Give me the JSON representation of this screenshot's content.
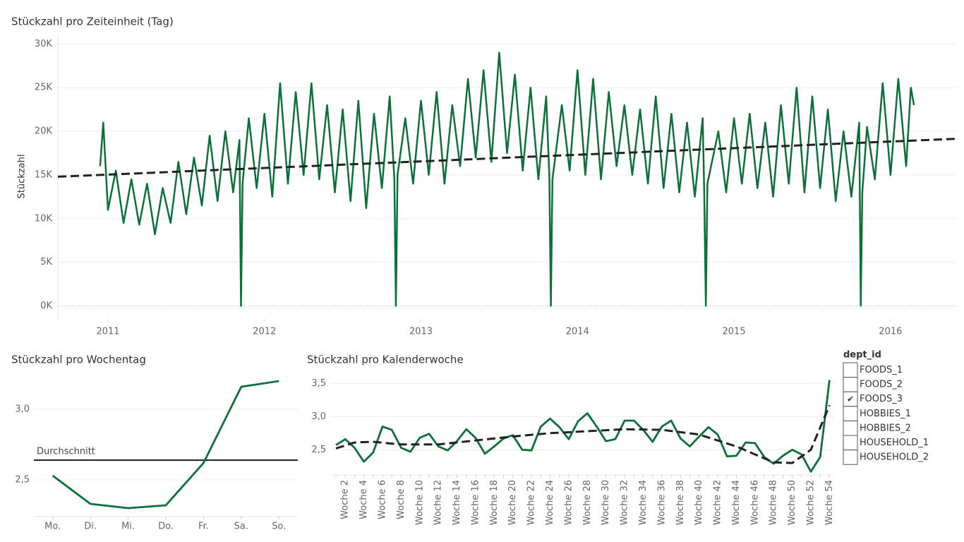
{
  "chart_data": [
    {
      "type": "line",
      "title": "Stückzahl pro Zeiteinheit (Tag)",
      "y_label": "Stückzahl",
      "color": "#0b7139",
      "x": [
        2010.95,
        2010.97,
        2011.0,
        2011.05,
        2011.1,
        2011.15,
        2011.2,
        2011.25,
        2011.3,
        2011.35,
        2011.4,
        2011.45,
        2011.5,
        2011.55,
        2011.6,
        2011.65,
        2011.7,
        2011.75,
        2011.8,
        2011.84,
        2011.85,
        2011.86,
        2011.9,
        2011.95,
        2012.0,
        2012.05,
        2012.1,
        2012.15,
        2012.2,
        2012.25,
        2012.3,
        2012.35,
        2012.4,
        2012.45,
        2012.5,
        2012.55,
        2012.6,
        2012.65,
        2012.7,
        2012.75,
        2012.8,
        2012.83,
        2012.84,
        2012.85,
        2012.9,
        2012.95,
        2013.0,
        2013.05,
        2013.1,
        2013.15,
        2013.2,
        2013.25,
        2013.3,
        2013.35,
        2013.4,
        2013.45,
        2013.5,
        2013.55,
        2013.6,
        2013.65,
        2013.7,
        2013.75,
        2013.8,
        2013.82,
        2013.83,
        2013.84,
        2013.9,
        2013.95,
        2014.0,
        2014.05,
        2014.1,
        2014.15,
        2014.2,
        2014.25,
        2014.3,
        2014.35,
        2014.4,
        2014.45,
        2014.5,
        2014.55,
        2014.6,
        2014.65,
        2014.7,
        2014.75,
        2014.8,
        2014.81,
        2014.82,
        2014.83,
        2014.9,
        2014.95,
        2015.0,
        2015.05,
        2015.1,
        2015.15,
        2015.2,
        2015.25,
        2015.3,
        2015.35,
        2015.4,
        2015.45,
        2015.5,
        2015.55,
        2015.6,
        2015.65,
        2015.7,
        2015.75,
        2015.8,
        2015.81,
        2015.82,
        2015.85,
        2015.9,
        2015.95,
        2016.0,
        2016.05,
        2016.1,
        2016.13,
        2016.15
      ],
      "values": [
        16000,
        21000,
        11000,
        15500,
        9500,
        14500,
        9300,
        14000,
        8200,
        13500,
        9500,
        16500,
        10500,
        17000,
        11500,
        19500,
        12000,
        20000,
        13000,
        19000,
        0,
        14000,
        21500,
        13500,
        22000,
        12500,
        25500,
        14000,
        24500,
        15000,
        25500,
        14500,
        23000,
        13000,
        22500,
        12000,
        23500,
        11200,
        22000,
        13500,
        24000,
        14500,
        0,
        15000,
        21500,
        14000,
        23500,
        15000,
        24500,
        14000,
        23000,
        16000,
        26000,
        17000,
        27000,
        16500,
        29000,
        17500,
        26500,
        15500,
        25000,
        14500,
        24000,
        15000,
        0,
        14500,
        23000,
        15500,
        27000,
        15000,
        26000,
        14500,
        24500,
        16000,
        23000,
        15000,
        22500,
        14000,
        24000,
        13500,
        22000,
        13000,
        21000,
        12500,
        21500,
        13000,
        0,
        14000,
        20000,
        13000,
        21500,
        14000,
        22000,
        13500,
        21000,
        12500,
        23000,
        14000,
        25000,
        13000,
        24000,
        13500,
        22500,
        12000,
        20000,
        12500,
        21000,
        0,
        13000,
        20500,
        14500,
        25500,
        15000,
        26000,
        16000,
        25000,
        23000
      ],
      "trend": {
        "x": [
          2010.68,
          2016.42
        ],
        "values": [
          14800,
          19150
        ]
      },
      "xlim": [
        2010.68,
        2016.42
      ],
      "xticks": [
        2011,
        2012,
        2013,
        2014,
        2015,
        2016
      ],
      "ylim": [
        -1500,
        31000
      ],
      "yticks": [
        {
          "value": 0,
          "label": "0K"
        },
        {
          "value": 5000,
          "label": "5K"
        },
        {
          "value": 10000,
          "label": "10K"
        },
        {
          "value": 15000,
          "label": "15K"
        },
        {
          "value": 20000,
          "label": "20K"
        },
        {
          "value": 25000,
          "label": "25K"
        },
        {
          "value": 30000,
          "label": "30K"
        }
      ],
      "grid": true
    },
    {
      "type": "line",
      "title": "Stückzahl pro Wochentag",
      "color": "#0b7139",
      "categories": [
        "Mo.",
        "Di.",
        "Mi.",
        "Do.",
        "Fr.",
        "Sa.",
        "So."
      ],
      "values": [
        2.53,
        2.33,
        2.3,
        2.32,
        2.62,
        3.16,
        3.2
      ],
      "reference_line": {
        "label": "Durchschnitt",
        "value": 2.64
      },
      "ylim": [
        2.24,
        3.24
      ],
      "yticks": [
        {
          "value": 2.5,
          "label": "2,5"
        },
        {
          "value": 3.0,
          "label": "3,0"
        }
      ],
      "grid": true
    },
    {
      "type": "line",
      "title": "Stückzahl pro Kalenderwoche",
      "color": "#0b7139",
      "categories": [
        null,
        "Woche 2",
        null,
        "Woche 4",
        null,
        "Woche 6",
        null,
        "Woche 8",
        null,
        "Woche 10",
        null,
        "Woche 12",
        null,
        "Woche 14",
        null,
        "Woche 16",
        null,
        "Woche 18",
        null,
        "Woche 20",
        null,
        "Woche 22",
        null,
        "Woche 24",
        null,
        "Woche 26",
        null,
        "Woche 28",
        null,
        "Woche 30",
        null,
        "Woche 32",
        null,
        "Woche 34",
        null,
        "Woche 36",
        null,
        "Woche 38",
        null,
        "Woche 40",
        null,
        "Woche 42",
        null,
        "Woche 44",
        null,
        "Woche 46",
        null,
        "Woche 48",
        null,
        "Woche 50",
        null,
        "Woche 52",
        null,
        "Woche 54"
      ],
      "values": [
        2.57,
        2.66,
        2.53,
        2.32,
        2.46,
        2.85,
        2.8,
        2.53,
        2.47,
        2.68,
        2.74,
        2.55,
        2.49,
        2.63,
        2.81,
        2.68,
        2.44,
        2.55,
        2.67,
        2.72,
        2.5,
        2.49,
        2.85,
        2.97,
        2.84,
        2.66,
        2.93,
        3.05,
        2.85,
        2.63,
        2.66,
        2.94,
        2.94,
        2.8,
        2.62,
        2.85,
        2.94,
        2.67,
        2.55,
        2.7,
        2.84,
        2.73,
        2.4,
        2.41,
        2.61,
        2.6,
        2.39,
        2.29,
        2.41,
        2.5,
        2.43,
        2.17,
        2.39,
        3.55
      ],
      "trend": {
        "x": [
          1,
          3,
          5,
          8,
          12,
          16,
          20,
          24,
          28,
          32,
          36,
          40,
          44,
          48,
          50,
          52,
          54
        ],
        "values": [
          2.52,
          2.61,
          2.62,
          2.58,
          2.58,
          2.64,
          2.7,
          2.75,
          2.78,
          2.81,
          2.8,
          2.73,
          2.55,
          2.31,
          2.3,
          2.5,
          3.17
        ]
      },
      "ylim": [
        2.12,
        3.61
      ],
      "yticks": [
        {
          "value": 2.5,
          "label": "2,5"
        },
        {
          "value": 3.0,
          "label": "3,0"
        },
        {
          "value": 3.5,
          "label": "3,5"
        }
      ],
      "grid": true
    }
  ],
  "filter": {
    "title": "dept_id",
    "options": [
      "FOODS_1",
      "FOODS_2",
      "FOODS_3",
      "HOBBIES_1",
      "HOBBIES_2",
      "HOUSEHOLD_1",
      "HOUSEHOLD_2"
    ],
    "checked": [
      false,
      false,
      true,
      false,
      false,
      false,
      false
    ]
  }
}
